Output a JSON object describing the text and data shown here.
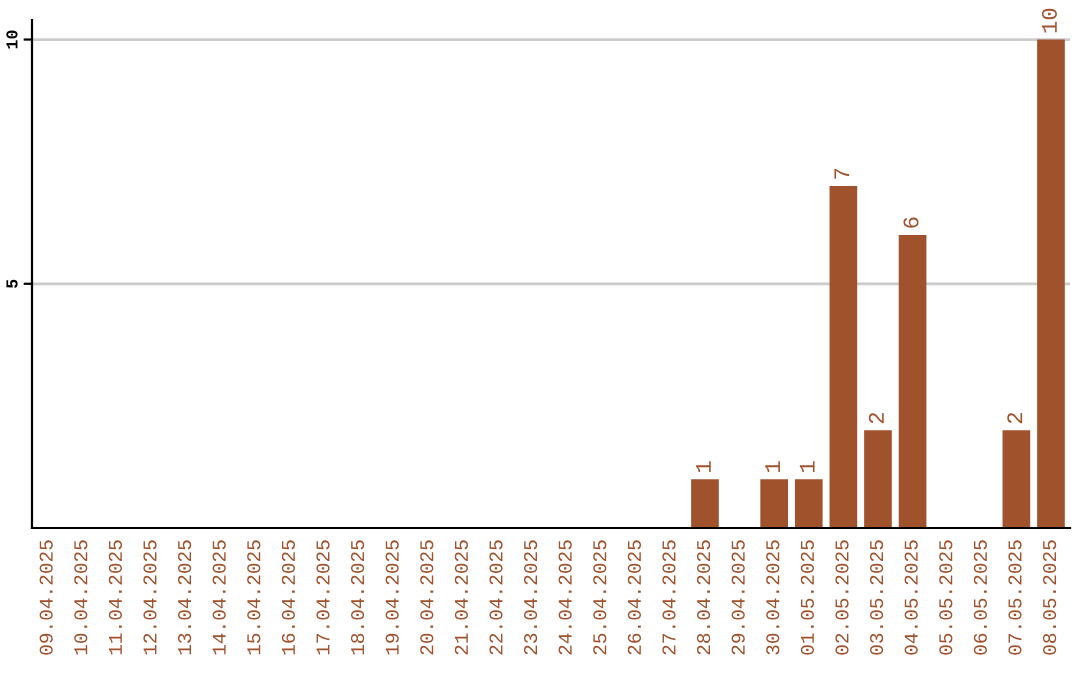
{
  "chart_data": {
    "type": "bar",
    "categories": [
      "09.04.2025",
      "10.04.2025",
      "11.04.2025",
      "12.04.2025",
      "13.04.2025",
      "14.04.2025",
      "15.04.2025",
      "16.04.2025",
      "17.04.2025",
      "18.04.2025",
      "19.04.2025",
      "20.04.2025",
      "21.04.2025",
      "22.04.2025",
      "23.04.2025",
      "24.04.2025",
      "25.04.2025",
      "26.04.2025",
      "27.04.2025",
      "28.04.2025",
      "29.04.2025",
      "30.04.2025",
      "01.05.2025",
      "02.05.2025",
      "03.05.2025",
      "04.05.2025",
      "05.05.2025",
      "06.05.2025",
      "07.05.2025",
      "08.05.2025"
    ],
    "values": [
      0,
      0,
      0,
      0,
      0,
      0,
      0,
      0,
      0,
      0,
      0,
      0,
      0,
      0,
      0,
      0,
      0,
      0,
      0,
      1,
      0,
      1,
      1,
      7,
      2,
      6,
      0,
      0,
      2,
      10
    ],
    "value_labels": [
      null,
      null,
      null,
      null,
      null,
      null,
      null,
      null,
      null,
      null,
      null,
      null,
      null,
      null,
      null,
      null,
      null,
      null,
      null,
      "1",
      null,
      "1",
      "1",
      "7",
      "2",
      "6",
      null,
      null,
      "2",
      "10"
    ],
    "color": "#a0522d",
    "ylim": [
      0,
      10.4
    ],
    "yticks": [
      5,
      10
    ],
    "grid": "y",
    "legend": false
  }
}
